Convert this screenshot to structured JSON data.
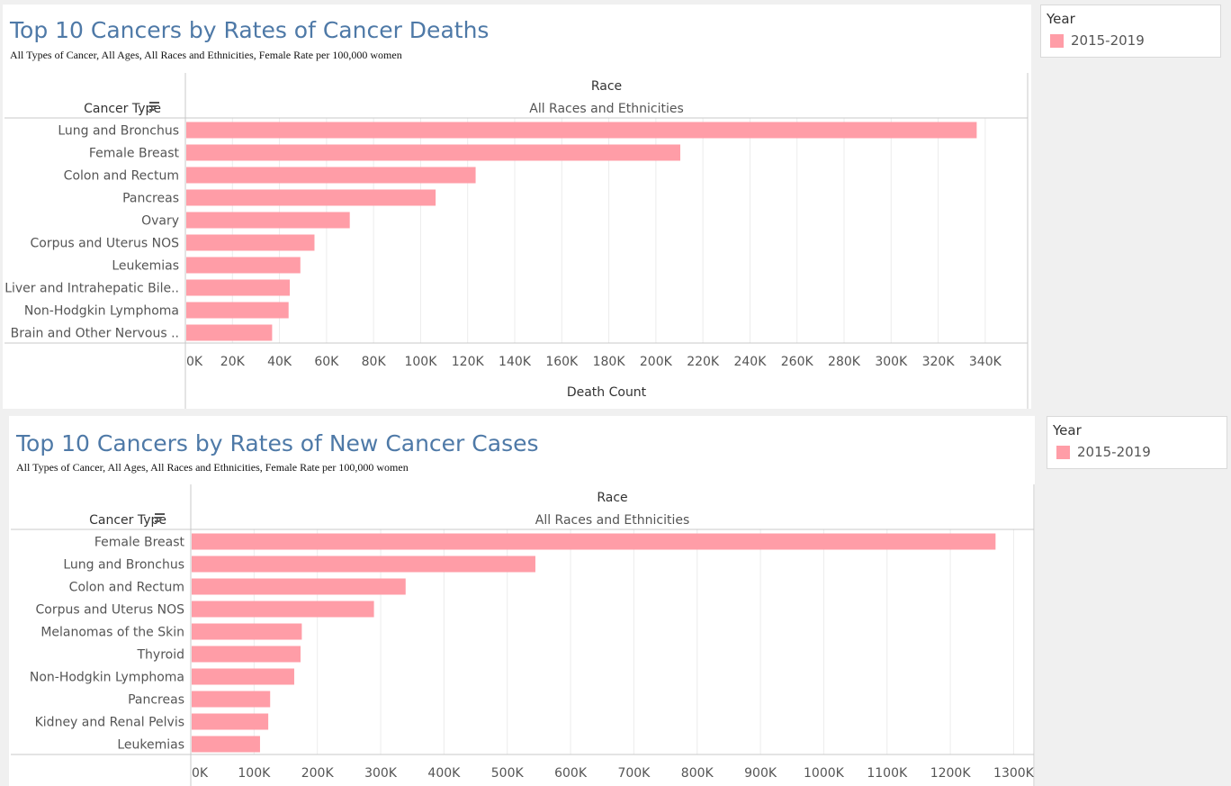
{
  "colors": {
    "bar": "#ff9da7",
    "title": "#4e79a7",
    "grid": "#ececec",
    "axis": "#c8c8c8",
    "text": "#555555"
  },
  "chart_data": [
    {
      "type": "bar",
      "orientation": "horizontal",
      "title": "Top 10 Cancers by Rates of Cancer Deaths",
      "subtitle": "All Types of Cancer, All Ages, All Races and Ethnicities, Female Rate per 100,000 women",
      "row_header": "Cancer Type",
      "column_header": "Race",
      "column_value": "All Races and Ethnicities",
      "xlabel": "Death Count",
      "xlim": [
        0,
        350000
      ],
      "xticks": [
        0,
        20000,
        40000,
        60000,
        80000,
        100000,
        120000,
        140000,
        160000,
        180000,
        200000,
        220000,
        240000,
        260000,
        280000,
        300000,
        320000,
        340000
      ],
      "xtick_labels": [
        "0K",
        "20K",
        "40K",
        "60K",
        "80K",
        "100K",
        "120K",
        "140K",
        "160K",
        "180K",
        "200K",
        "220K",
        "240K",
        "260K",
        "280K",
        "300K",
        "320K",
        "340K"
      ],
      "categories": [
        "Lung and Bronchus",
        "Female Breast",
        "Colon and Rectum",
        "Pancreas",
        "Ovary",
        "Corpus and Uterus NOS",
        "Leukemias",
        "Liver and Intrahepatic Bile..",
        "Non-Hodgkin Lymphoma",
        "Brain and Other Nervous .."
      ],
      "values": [
        336000,
        210000,
        123000,
        106000,
        69500,
        54500,
        48500,
        44000,
        43500,
        36500
      ],
      "legend": {
        "title": "Year",
        "items": [
          "2015-2019"
        ]
      }
    },
    {
      "type": "bar",
      "orientation": "horizontal",
      "title": "Top 10 Cancers by Rates of New Cancer Cases",
      "subtitle": "All Types of Cancer, All Ages, All Races and Ethnicities, Female Rate per 100,000 women",
      "row_header": "Cancer Type",
      "column_header": "Race",
      "column_value": "All Races and Ethnicities",
      "xlabel": "",
      "xlim": [
        0,
        1315000
      ],
      "xticks": [
        0,
        100000,
        200000,
        300000,
        400000,
        500000,
        600000,
        700000,
        800000,
        900000,
        1000000,
        1100000,
        1200000,
        1300000
      ],
      "xtick_labels": [
        "0K",
        "100K",
        "200K",
        "300K",
        "400K",
        "500K",
        "600K",
        "700K",
        "800K",
        "900K",
        "1000K",
        "1100K",
        "1200K",
        "1300K"
      ],
      "categories": [
        "Female Breast",
        "Lung and Bronchus",
        "Colon and Rectum",
        "Corpus and Uterus NOS",
        "Melanomas of the Skin",
        "Thyroid",
        "Non-Hodgkin Lymphoma",
        "Pancreas",
        "Kidney and Renal Pelvis",
        "Leukemias"
      ],
      "values": [
        1270000,
        543000,
        338000,
        288000,
        174000,
        172000,
        162000,
        124000,
        121000,
        108000
      ],
      "legend": {
        "title": "Year",
        "items": [
          "2015-2019"
        ]
      }
    }
  ]
}
